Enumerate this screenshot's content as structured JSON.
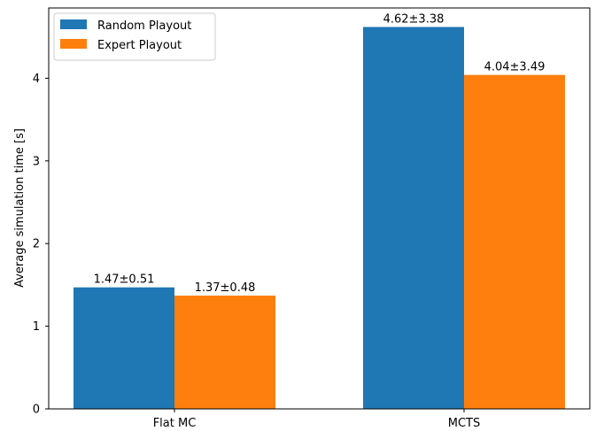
{
  "chart_data": {
    "type": "bar",
    "title": "",
    "xlabel": "",
    "ylabel": "Average simulation time [s]",
    "categories": [
      "Flat MC",
      "MCTS"
    ],
    "series": [
      {
        "name": "Random Playout",
        "color": "#1f77b4",
        "values": [
          1.47,
          4.62
        ],
        "errors": [
          0.51,
          3.38
        ],
        "labels": [
          "1.47±0.51",
          "4.62±3.38"
        ]
      },
      {
        "name": "Expert Playout",
        "color": "#ff7f0e",
        "values": [
          1.37,
          4.04
        ],
        "errors": [
          0.48,
          3.49
        ],
        "labels": [
          "1.37±0.48",
          "4.04±3.49"
        ]
      }
    ],
    "ylim": [
      0,
      4.85
    ],
    "yticks": [
      "0",
      "1",
      "2",
      "3",
      "4"
    ],
    "grid": false,
    "legend_position": "top-left"
  }
}
